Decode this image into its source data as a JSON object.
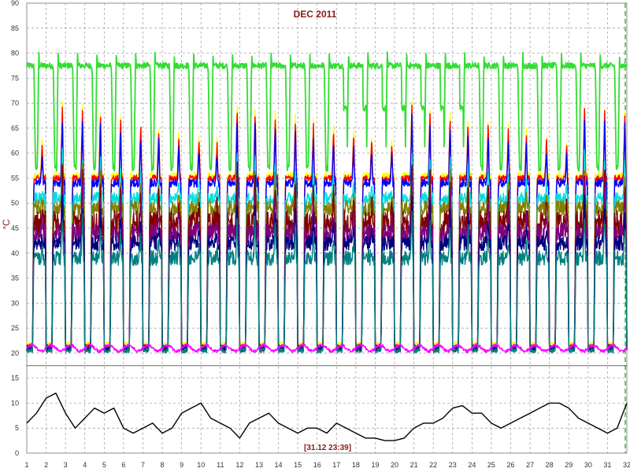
{
  "chart_data": {
    "type": "line",
    "title": "DEC 2011",
    "ylabel": "°C",
    "cursor_label": "[31.12 23:39]",
    "xlim": [
      1,
      32
    ],
    "ylim": [
      0,
      90
    ],
    "x_ticks": [
      1,
      2,
      3,
      4,
      5,
      6,
      7,
      8,
      9,
      10,
      11,
      12,
      13,
      14,
      15,
      16,
      17,
      18,
      19,
      20,
      21,
      22,
      23,
      24,
      25,
      26,
      27,
      28,
      29,
      30,
      31,
      32
    ],
    "y_ticks": [
      0,
      5,
      10,
      15,
      20,
      25,
      30,
      35,
      40,
      45,
      50,
      55,
      60,
      65,
      70,
      75,
      80,
      85,
      90
    ],
    "grid": true,
    "break_ys": [
      17.5
    ],
    "series": [
      {
        "color": "#33dd33",
        "kind": "upper",
        "base": 77.5,
        "low": 57,
        "peak": 78,
        "spike": 3,
        "noise": 0.6,
        "shift": -0.35
      },
      {
        "color": "#ffff00",
        "kind": "daily",
        "base": 55.5,
        "low": 22,
        "peak": 65,
        "noise": 0.6,
        "shift": 0.0
      },
      {
        "color": "#ff0000",
        "kind": "daily",
        "base": 55,
        "low": 21.5,
        "peak": 64,
        "noise": 0.6,
        "shift": 0.0
      },
      {
        "color": "#0000ff",
        "kind": "daily",
        "base": 54,
        "low": 21,
        "peak": 62,
        "noise": 0.8,
        "shift": 0.0
      },
      {
        "color": "#00dddd",
        "kind": "daily",
        "base": 51,
        "low": 21,
        "peak": 55,
        "noise": 1.2,
        "shift": 0.05
      },
      {
        "color": "#808000",
        "kind": "daily",
        "base": 49,
        "low": 21,
        "peak": 52,
        "noise": 1.5,
        "shift": 0.08
      },
      {
        "color": "#800000",
        "kind": "daily",
        "base": 46,
        "low": 21,
        "peak": 51,
        "noise": 2.5,
        "shift": 0.1
      },
      {
        "color": "#800080",
        "kind": "daily",
        "base": 44,
        "low": 21,
        "peak": 48,
        "noise": 2,
        "shift": 0.12
      },
      {
        "color": "#000080",
        "kind": "daily",
        "base": 42,
        "low": 20.8,
        "peak": 45,
        "noise": 1.5,
        "shift": 0.14
      },
      {
        "color": "#008080",
        "kind": "daily",
        "base": 39,
        "low": 20.5,
        "peak": 42,
        "noise": 1.5,
        "shift": 0.16
      },
      {
        "color": "#ff00ff",
        "kind": "flat",
        "base": 21,
        "amp": 0.6,
        "noise": 0.3
      },
      {
        "color": "#000000",
        "kind": "points",
        "x": [
          1,
          1.5,
          2,
          2.5,
          3,
          3.5,
          4,
          4.5,
          5,
          5.5,
          6,
          6.5,
          7,
          7.5,
          8,
          8.5,
          9,
          9.5,
          10,
          10.5,
          11,
          11.5,
          12,
          12.5,
          13,
          13.5,
          14,
          14.5,
          15,
          15.5,
          16,
          16.5,
          17,
          17.5,
          18,
          18.5,
          19,
          19.5,
          20,
          20.5,
          21,
          21.5,
          22,
          22.5,
          23,
          23.5,
          24,
          24.5,
          25,
          25.5,
          26,
          26.5,
          27,
          27.5,
          28,
          28.5,
          29,
          29.5,
          30,
          30.5,
          31,
          31.5,
          32
        ],
        "y": [
          6,
          8,
          11,
          12,
          8,
          5,
          7,
          9,
          8,
          9,
          5,
          4,
          5,
          6,
          4,
          5,
          8,
          9,
          10,
          7,
          6,
          5,
          3,
          6,
          7,
          8,
          6,
          5,
          4,
          5,
          5,
          4,
          6,
          5,
          4,
          3,
          3,
          2.5,
          2.5,
          3,
          5,
          6,
          6,
          7,
          9,
          9.5,
          8,
          8,
          6,
          5,
          6,
          7,
          8,
          9,
          10,
          10,
          9,
          7,
          6,
          5,
          4,
          5,
          10
        ]
      }
    ]
  }
}
